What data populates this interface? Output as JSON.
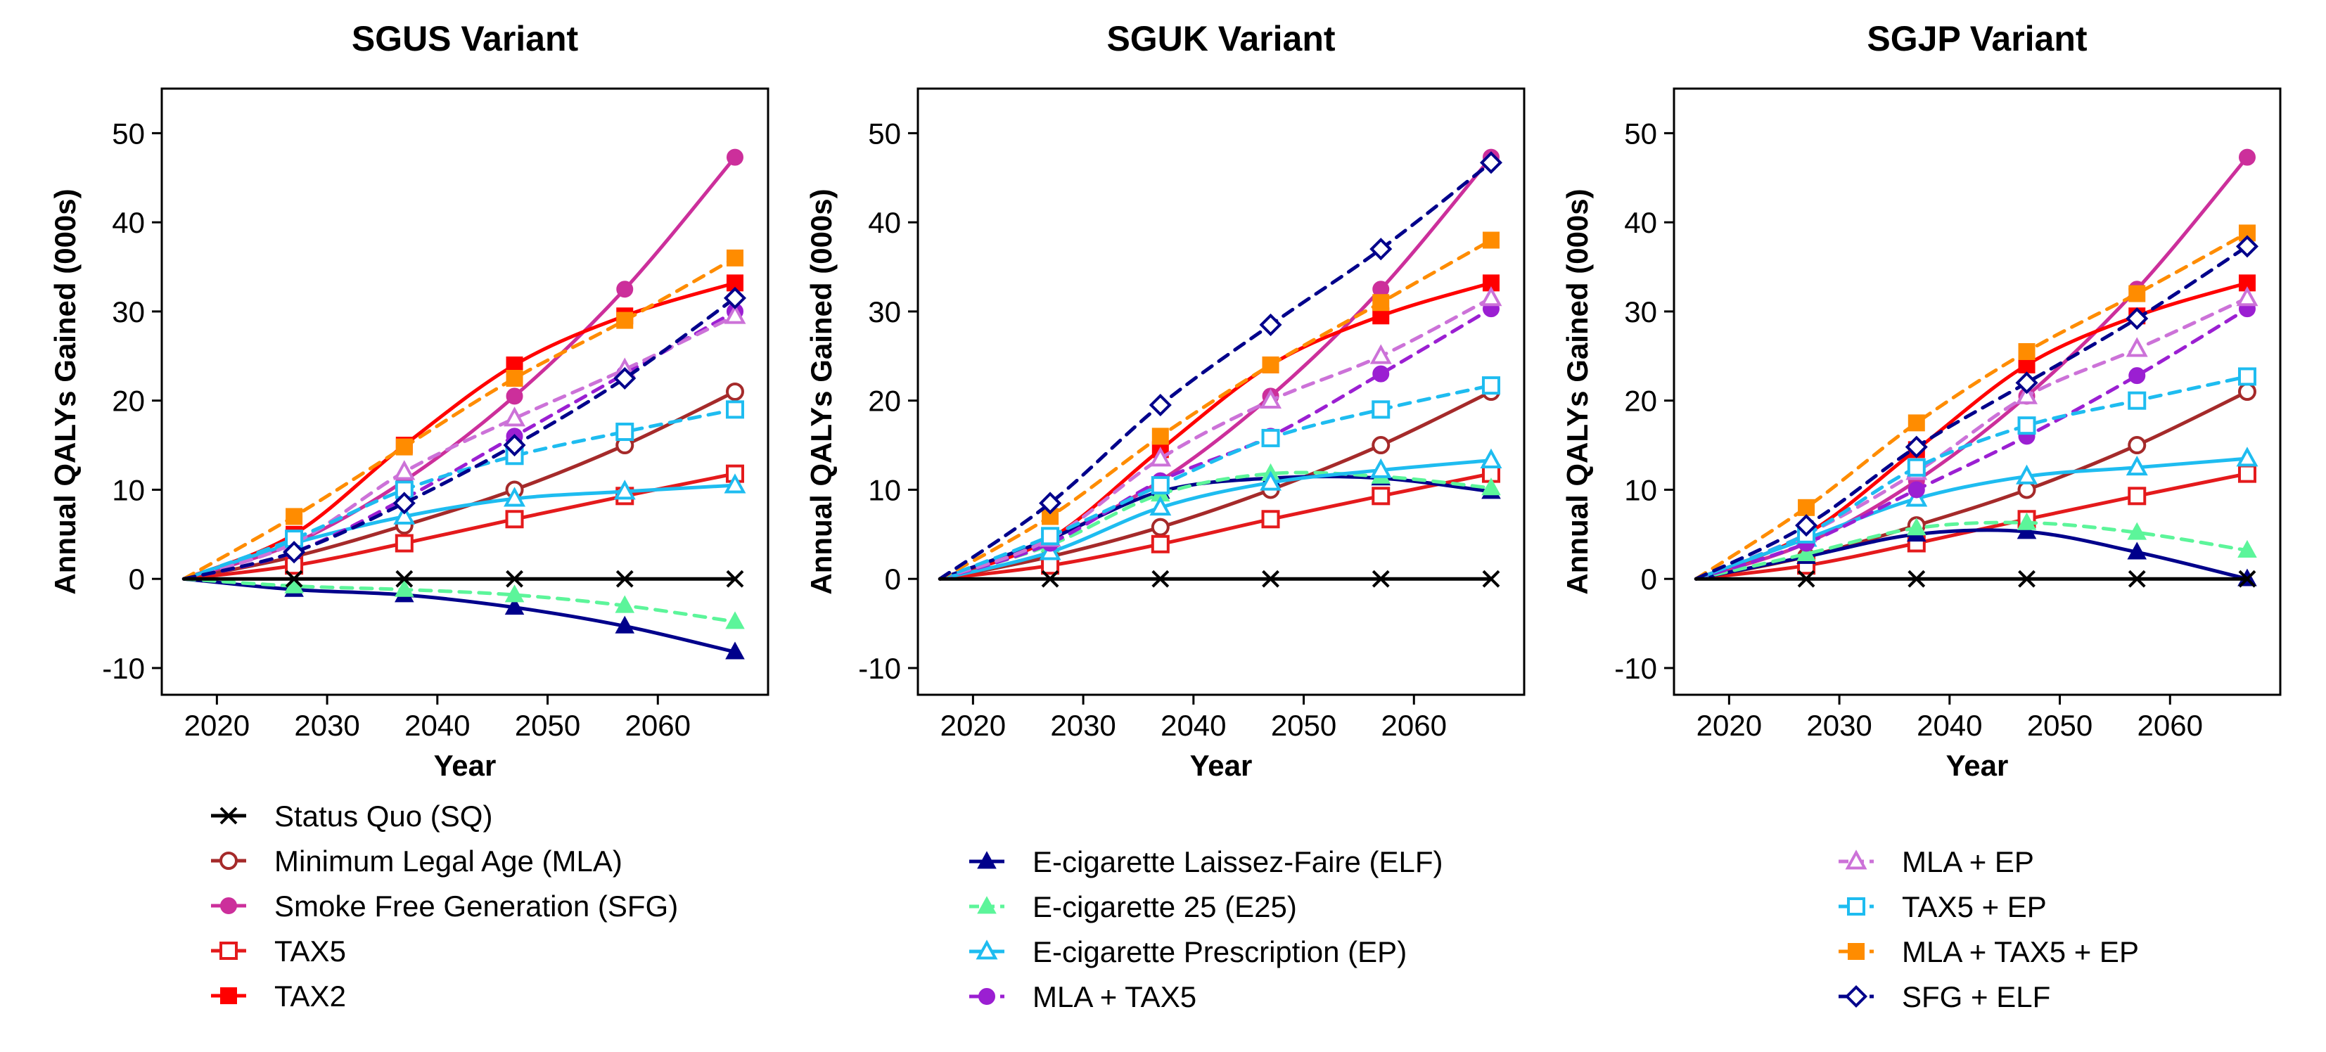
{
  "series_styles": {
    "Status Quo (SQ)": {
      "color": "#000000",
      "marker": "x",
      "dash": false
    },
    "Minimum Legal Age (MLA)": {
      "color": "#a52a2a",
      "marker": "circle-open",
      "dash": false
    },
    "Smoke Free Generation (SFG)": {
      "color": "#cc2f9b",
      "marker": "circle",
      "dash": false
    },
    "TAX5": {
      "color": "#e41a1c",
      "marker": "square-open",
      "dash": false
    },
    "TAX2": {
      "color": "#ff0000",
      "marker": "square",
      "dash": false
    },
    "E-cigarette Laissez-Faire (ELF)": {
      "color": "#00008b",
      "marker": "triangle",
      "dash": false
    },
    "E-cigarette 25 (E25)": {
      "color": "#5cf59a",
      "marker": "triangle",
      "dash": true
    },
    "E-cigarette Prescription (EP)": {
      "color": "#1ebcf0",
      "marker": "triangle-open",
      "dash": false
    },
    "MLA + TAX5": {
      "color": "#9b1fd2",
      "marker": "circle",
      "dash": true
    },
    "MLA + EP": {
      "color": "#cc72d8",
      "marker": "triangle-open",
      "dash": true
    },
    "TAX5 + EP": {
      "color": "#1ebcf0",
      "marker": "square-open",
      "dash": true
    },
    "MLA + TAX5 + EP": {
      "color": "#ff8c00",
      "marker": "square",
      "dash": true
    },
    "SFG + ELF": {
      "color": "#00008b",
      "marker": "diamond-open",
      "dash": true
    }
  },
  "legend": {
    "columns": [
      [
        "Status Quo (SQ)",
        "Minimum Legal Age (MLA)",
        "Smoke Free Generation (SFG)",
        "TAX5",
        "TAX2"
      ],
      [
        "E-cigarette Laissez-Faire (ELF)",
        "E-cigarette 25 (E25)",
        "E-cigarette Prescription (EP)",
        "MLA + TAX5"
      ],
      [
        "MLA + EP",
        "TAX5 + EP",
        "MLA + TAX5 + EP",
        "SFG + ELF"
      ]
    ]
  },
  "chart_data": [
    {
      "type": "line",
      "title": "SGUS Variant",
      "xlabel": "Year",
      "ylabel": "Annual QALYs Gained (000s)",
      "x": [
        2017,
        2027,
        2037,
        2047,
        2057,
        2067
      ],
      "xlim": [
        2015,
        2070
      ],
      "ylim": [
        -13,
        55
      ],
      "xticks": [
        2020,
        2030,
        2040,
        2050,
        2060
      ],
      "yticks": [
        -10,
        0,
        10,
        20,
        30,
        40,
        50
      ],
      "grid": false,
      "series": [
        {
          "name": "Status Quo (SQ)",
          "values": [
            0,
            0,
            0,
            0,
            0,
            0
          ]
        },
        {
          "name": "Minimum Legal Age (MLA)",
          "values": [
            0,
            2.5,
            6,
            10,
            15,
            21
          ]
        },
        {
          "name": "Smoke Free Generation (SFG)",
          "values": [
            0,
            4,
            11,
            20.5,
            32.5,
            47.3
          ]
        },
        {
          "name": "TAX5",
          "values": [
            0,
            1.5,
            4,
            6.7,
            9.3,
            11.8
          ]
        },
        {
          "name": "TAX2",
          "values": [
            0,
            5,
            15,
            24,
            29.5,
            33.2
          ]
        },
        {
          "name": "E-cigarette Laissez-Faire (ELF)",
          "values": [
            0,
            -1.2,
            -1.8,
            -3.2,
            -5.3,
            -8.2
          ]
        },
        {
          "name": "E-cigarette 25 (E25)",
          "values": [
            0,
            -0.8,
            -1.2,
            -1.8,
            -3,
            -4.8
          ]
        },
        {
          "name": "E-cigarette Prescription (EP)",
          "values": [
            0,
            4,
            7,
            9,
            9.8,
            10.5
          ]
        },
        {
          "name": "MLA + TAX5",
          "values": [
            0,
            3,
            9,
            16,
            23,
            30
          ]
        },
        {
          "name": "MLA + EP",
          "values": [
            0,
            4,
            12,
            18,
            23.5,
            29.5
          ]
        },
        {
          "name": "TAX5 + EP",
          "values": [
            0,
            4.5,
            10,
            13.8,
            16.5,
            19
          ]
        },
        {
          "name": "MLA + TAX5 + EP",
          "values": [
            0,
            7,
            14.8,
            22.5,
            29,
            36
          ]
        },
        {
          "name": "SFG + ELF",
          "values": [
            0,
            3,
            8.5,
            15,
            22.5,
            31.5
          ]
        }
      ]
    },
    {
      "type": "line",
      "title": "SGUK Variant",
      "xlabel": "Year",
      "ylabel": "Annual QALYs Gained (000s)",
      "x": [
        2017,
        2027,
        2037,
        2047,
        2057,
        2067
      ],
      "xlim": [
        2015,
        2070
      ],
      "ylim": [
        -13,
        55
      ],
      "xticks": [
        2020,
        2030,
        2040,
        2050,
        2060
      ],
      "yticks": [
        -10,
        0,
        10,
        20,
        30,
        40,
        50
      ],
      "grid": false,
      "series": [
        {
          "name": "Status Quo (SQ)",
          "values": [
            0,
            0,
            0,
            0,
            0,
            0
          ]
        },
        {
          "name": "Minimum Legal Age (MLA)",
          "values": [
            0,
            2.5,
            5.8,
            10,
            15,
            21
          ]
        },
        {
          "name": "Smoke Free Generation (SFG)",
          "values": [
            0,
            4.5,
            11,
            20.5,
            32.5,
            47.3
          ]
        },
        {
          "name": "TAX5",
          "values": [
            0,
            1.5,
            3.9,
            6.7,
            9.3,
            11.8
          ]
        },
        {
          "name": "TAX2",
          "values": [
            0,
            4.5,
            14.5,
            24,
            29.5,
            33.2
          ]
        },
        {
          "name": "E-cigarette Laissez-Faire (ELF)",
          "values": [
            0,
            4.5,
            9.8,
            11.3,
            11.3,
            9.8
          ]
        },
        {
          "name": "E-cigarette 25 (E25)",
          "values": [
            0,
            3.8,
            9.5,
            11.8,
            11.5,
            10.2
          ]
        },
        {
          "name": "E-cigarette Prescription (EP)",
          "values": [
            0,
            3,
            8,
            10.8,
            12.2,
            13.3
          ]
        },
        {
          "name": "MLA + TAX5",
          "values": [
            0,
            4,
            11,
            16,
            23,
            30.3
          ]
        },
        {
          "name": "MLA + EP",
          "values": [
            0,
            4.5,
            13.5,
            20,
            25,
            31.5
          ]
        },
        {
          "name": "TAX5 + EP",
          "values": [
            0,
            4.8,
            10.5,
            15.8,
            19,
            21.7
          ]
        },
        {
          "name": "MLA + TAX5 + EP",
          "values": [
            0,
            7,
            16,
            24,
            31,
            38
          ]
        },
        {
          "name": "SFG + ELF",
          "values": [
            0,
            8.5,
            19.5,
            28.5,
            37,
            46.7
          ]
        }
      ]
    },
    {
      "type": "line",
      "title": "SGJP Variant",
      "xlabel": "Year",
      "ylabel": "Annual QALYs Gained (000s)",
      "x": [
        2017,
        2027,
        2037,
        2047,
        2057,
        2067
      ],
      "xlim": [
        2015,
        2070
      ],
      "ylim": [
        -13,
        55
      ],
      "xticks": [
        2020,
        2030,
        2040,
        2050,
        2060
      ],
      "yticks": [
        -10,
        0,
        10,
        20,
        30,
        40,
        50
      ],
      "grid": false,
      "series": [
        {
          "name": "Status Quo (SQ)",
          "values": [
            0,
            0,
            0,
            0,
            0,
            0
          ]
        },
        {
          "name": "Minimum Legal Age (MLA)",
          "values": [
            0,
            2.5,
            6,
            10,
            15,
            21
          ]
        },
        {
          "name": "Smoke Free Generation (SFG)",
          "values": [
            0,
            4,
            11,
            20.5,
            32.5,
            47.3
          ]
        },
        {
          "name": "TAX5",
          "values": [
            0,
            1.5,
            4,
            6.7,
            9.3,
            11.8
          ]
        },
        {
          "name": "TAX2",
          "values": [
            0,
            5,
            14.5,
            24,
            29.5,
            33.2
          ]
        },
        {
          "name": "E-cigarette Laissez-Faire (ELF)",
          "values": [
            0,
            2.5,
            5,
            5.3,
            3,
            0
          ]
        },
        {
          "name": "E-cigarette 25 (E25)",
          "values": [
            0,
            2.8,
            5.7,
            6.3,
            5.2,
            3.2
          ]
        },
        {
          "name": "E-cigarette Prescription (EP)",
          "values": [
            0,
            4.5,
            9,
            11.5,
            12.5,
            13.5
          ]
        },
        {
          "name": "MLA + TAX5",
          "values": [
            0,
            4,
            10,
            16,
            22.8,
            30.3
          ]
        },
        {
          "name": "MLA + EP",
          "values": [
            0,
            5,
            12,
            20.5,
            25.8,
            31.5
          ]
        },
        {
          "name": "TAX5 + EP",
          "values": [
            0,
            5,
            12.5,
            17.2,
            20,
            22.7
          ]
        },
        {
          "name": "MLA + TAX5 + EP",
          "values": [
            0,
            8,
            17.5,
            25.5,
            32,
            38.8
          ]
        },
        {
          "name": "SFG + ELF",
          "values": [
            0,
            6,
            14.8,
            22,
            29.2,
            37.3
          ]
        }
      ]
    }
  ]
}
